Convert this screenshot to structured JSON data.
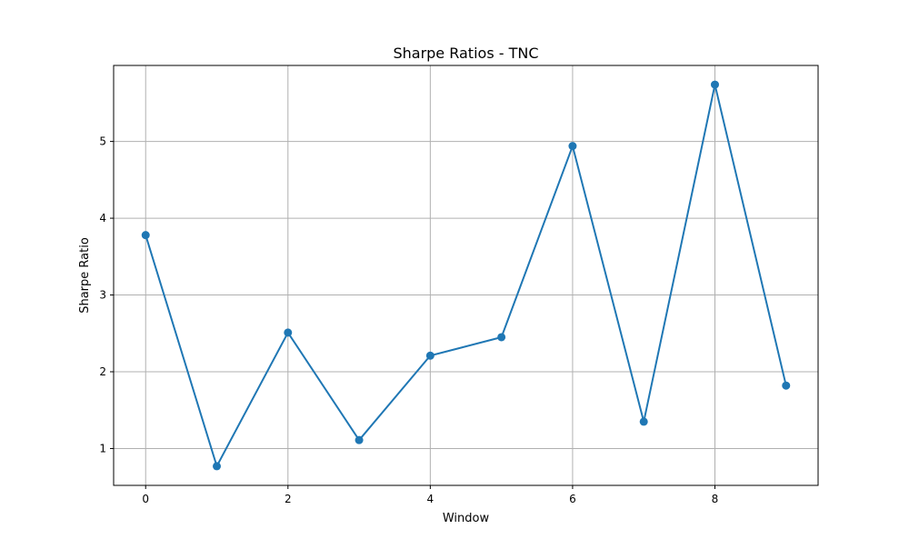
{
  "chart_data": {
    "type": "line",
    "title": "Sharpe Ratios - TNC",
    "xlabel": "Window",
    "ylabel": "Sharpe Ratio",
    "x": [
      0,
      1,
      2,
      3,
      4,
      5,
      6,
      7,
      8,
      9
    ],
    "series": [
      {
        "values": [
          3.78,
          0.77,
          2.51,
          1.11,
          2.21,
          2.45,
          4.94,
          1.35,
          5.74,
          1.82
        ],
        "color": "#1f77b4",
        "marker": "circle"
      }
    ],
    "xlim": [
      -0.45,
      9.45
    ],
    "ylim": [
      0.52,
      5.99
    ],
    "xticks": [
      0,
      2,
      4,
      6,
      8
    ],
    "yticks": [
      1,
      2,
      3,
      4,
      5
    ],
    "grid": true,
    "legend": "none"
  }
}
